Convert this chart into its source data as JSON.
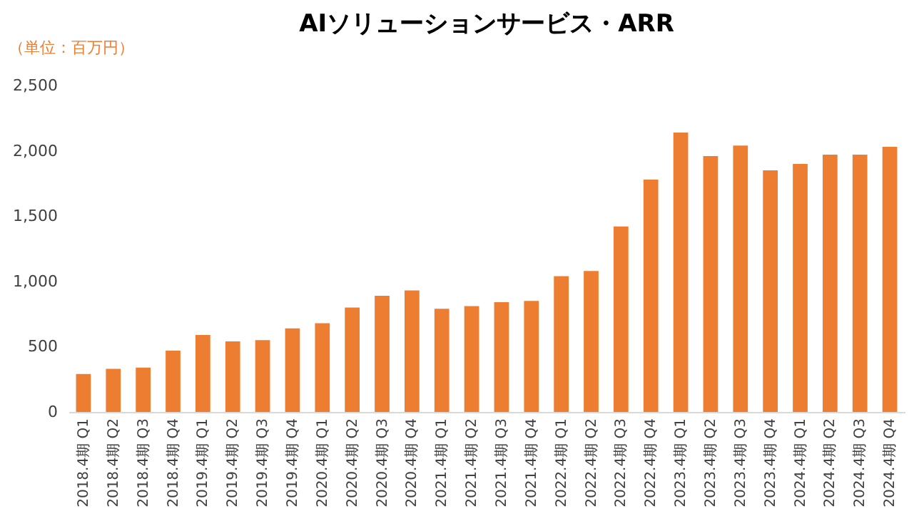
{
  "chart_data": {
    "type": "bar",
    "title": "AIソリューションサービス・ARR",
    "annotations": [
      "（単位：百万円）"
    ],
    "categories": [
      "2018.4期 Q1",
      "2018.4期 Q2",
      "2018.4期 Q3",
      "2018.4期 Q4",
      "2019.4期 Q1",
      "2019.4期 Q2",
      "2019.4期 Q3",
      "2019.4期 Q4",
      "2020.4期 Q1",
      "2020.4期 Q2",
      "2020.4期 Q3",
      "2020.4期 Q4",
      "2021.4期 Q1",
      "2021.4期 Q2",
      "2021.4期 Q3",
      "2021.4期 Q4",
      "2022.4期 Q1",
      "2022.4期 Q2",
      "2022.4期 Q3",
      "2022.4期 Q4",
      "2023.4期 Q1",
      "2023.4期 Q2",
      "2023.4期 Q3",
      "2023.4期 Q4",
      "2024.4期 Q1",
      "2024.4期 Q2",
      "2024.4期 Q3",
      "2024.4期 Q4"
    ],
    "values": [
      290,
      330,
      340,
      470,
      590,
      540,
      550,
      640,
      680,
      800,
      890,
      930,
      790,
      810,
      840,
      850,
      1040,
      1080,
      1420,
      1780,
      2140,
      1960,
      2040,
      1850,
      1900,
      1970,
      1970,
      2030
    ],
    "color": "#ed7d31",
    "ylim": [
      0,
      2500
    ],
    "yticks": [
      0,
      500,
      {
        "value": 1000,
        "label": "1,000"
      },
      {
        "value": 1500,
        "label": "1,500"
      },
      {
        "value": 2000,
        "label": "2,000"
      },
      {
        "value": 2500,
        "label": "2,500"
      }
    ],
    "grid": false
  }
}
